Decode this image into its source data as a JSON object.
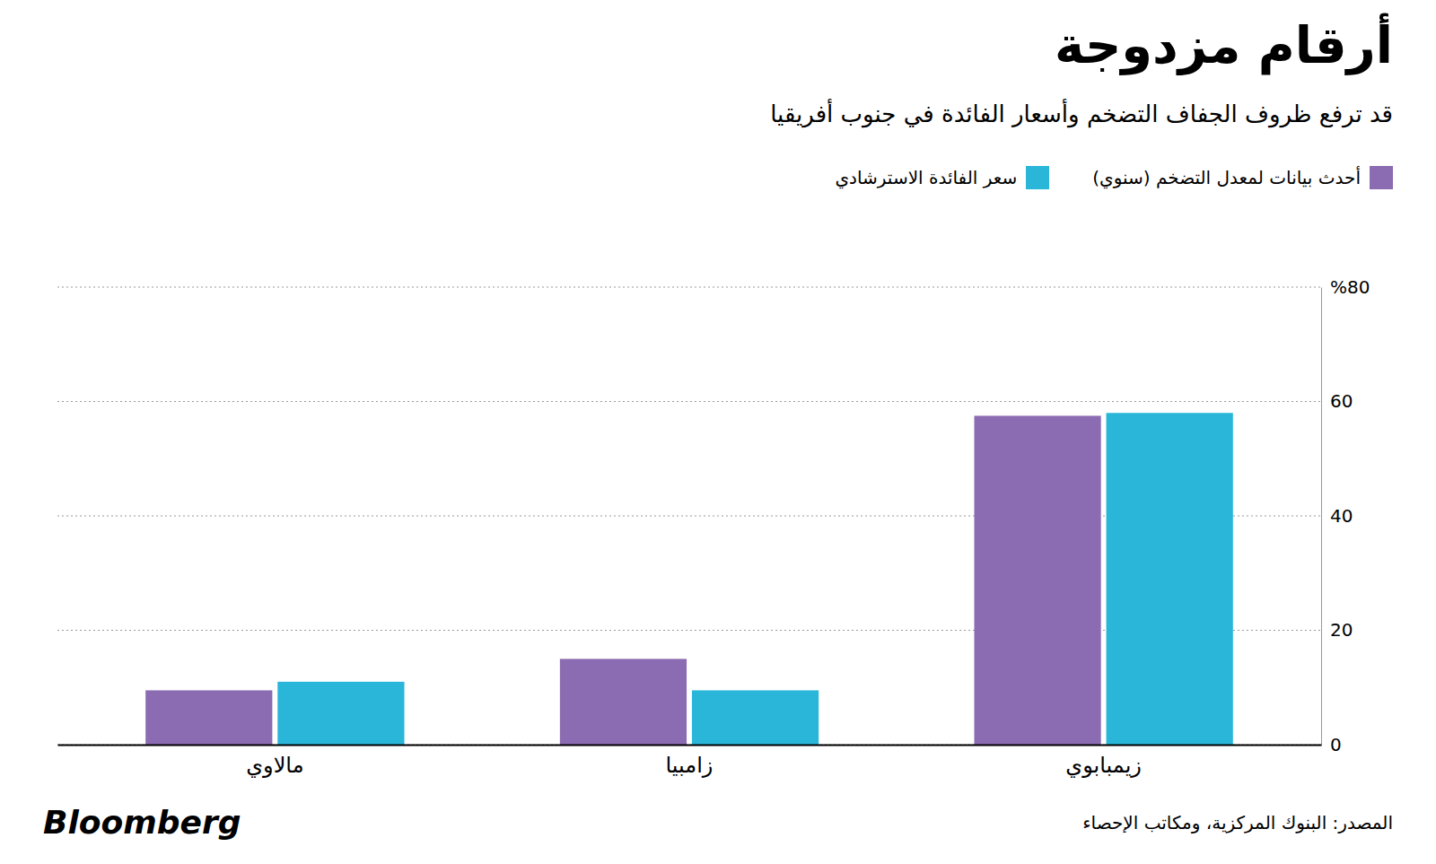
{
  "chart_data": {
    "type": "bar",
    "title": "أرقام مزدوجة",
    "subtitle": "قد ترفع ظروف الجفاف التضخم وأسعار الفائدة في جنوب أفريقيا",
    "categories": [
      "مالاوي",
      "زامبيا",
      "زيمبابوي"
    ],
    "series": [
      {
        "name": "أحدث بيانات لمعدل التضخم (سنوي)",
        "color": "#8B6BB1",
        "values": [
          9.5,
          15.0,
          57.5
        ]
      },
      {
        "name": "سعر الفائدة الاسترشادي",
        "color": "#29B6D8",
        "values": [
          11.0,
          9.5,
          58.0
        ]
      }
    ],
    "ylim": [
      0,
      80
    ],
    "yticks": [
      0,
      20,
      40,
      60,
      {
        "value": 80,
        "label": "%80"
      }
    ],
    "grid": true,
    "legend": "top-right",
    "annotations": [
      "المصدر: البنوك المركزية، ومكاتب الإحصاء",
      "Bloomberg"
    ]
  }
}
